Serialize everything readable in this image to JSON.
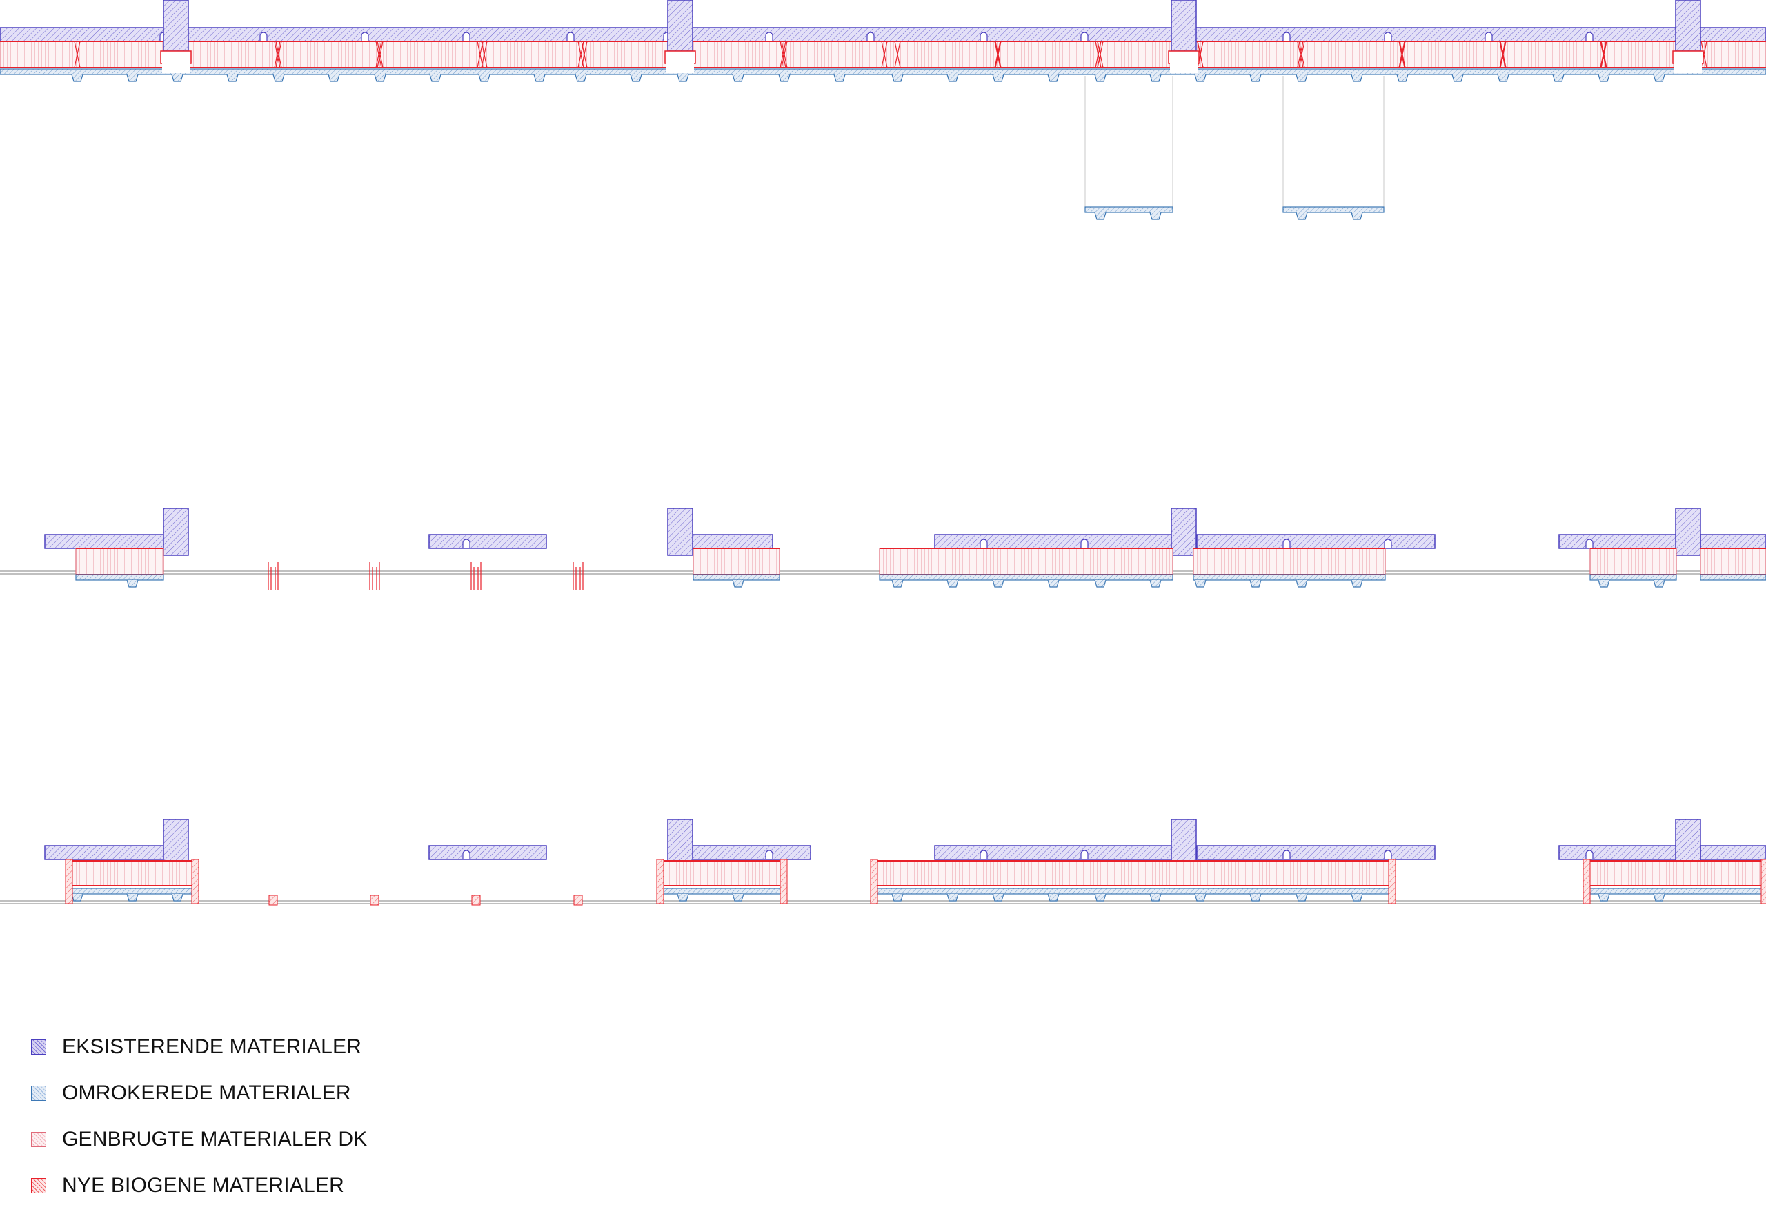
{
  "diagram": {
    "colors": {
      "existing": "#4a3fbf",
      "relocated": "#3d78b5",
      "reused": "#e06b7a",
      "new_biogenic": "#e8202a"
    }
  },
  "legend": {
    "items": [
      {
        "label": "EKSISTERENDE MATERIALER",
        "color": "#4a3fbf",
        "fill": "#d7d3f2"
      },
      {
        "label": "OMROKEREDE MATERIALER",
        "color": "#3d78b5",
        "fill": "#dfe8f4"
      },
      {
        "label": "GENBRUGTE MATERIALER DK",
        "color": "#e06b7a",
        "fill": "#f8dde2"
      },
      {
        "label": "NYE BIOGENE MATERIALER",
        "color": "#e8202a",
        "fill": "#fbd5d5"
      }
    ]
  }
}
